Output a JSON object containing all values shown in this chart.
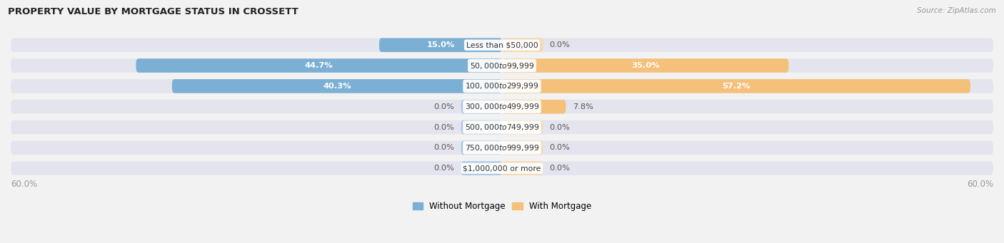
{
  "title": "PROPERTY VALUE BY MORTGAGE STATUS IN CROSSETT",
  "source": "Source: ZipAtlas.com",
  "categories": [
    "Less than $50,000",
    "$50,000 to $99,999",
    "$100,000 to $299,999",
    "$300,000 to $499,999",
    "$500,000 to $749,999",
    "$750,000 to $999,999",
    "$1,000,000 or more"
  ],
  "without_mortgage": [
    15.0,
    44.7,
    40.3,
    0.0,
    0.0,
    0.0,
    0.0
  ],
  "with_mortgage": [
    0.0,
    35.0,
    57.2,
    7.8,
    0.0,
    0.0,
    0.0
  ],
  "max_val": 60.0,
  "blue_color": "#7BAFD4",
  "orange_color": "#F5C07A",
  "blue_stub_color": "#A8C8E8",
  "orange_stub_color": "#F5D9B0",
  "blue_label": "Without Mortgage",
  "orange_label": "With Mortgage",
  "bg_color": "#F2F2F2",
  "row_bg_color": "#E4E4EE",
  "title_color": "#222222",
  "value_outside_color": "#555555",
  "value_inside_color": "#FFFFFF",
  "axis_label_color": "#999999",
  "category_bg": "#FFFFFF",
  "category_text": "#333333",
  "stub_size": 5.0
}
